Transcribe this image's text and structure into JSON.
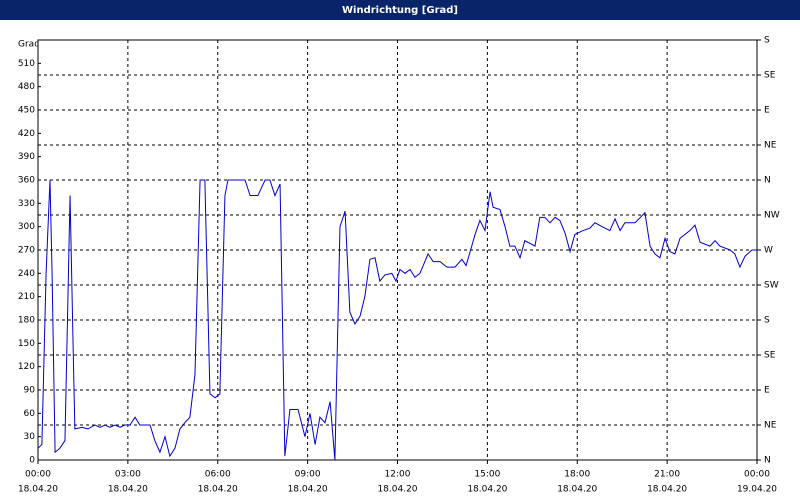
{
  "chart_data": {
    "type": "line",
    "title": "Windrichtung [Grad]",
    "y_label": "Grad",
    "color": "#0000cc",
    "grid": true,
    "xlim": [
      0,
      24
    ],
    "xticks": [
      {
        "value": 0,
        "label": "00:00"
      },
      {
        "value": 3,
        "label": "03:00"
      },
      {
        "value": 6,
        "label": "06:00"
      },
      {
        "value": 9,
        "label": "09:00"
      },
      {
        "value": 12,
        "label": "12:00"
      },
      {
        "value": 15,
        "label": "15:00"
      },
      {
        "value": 18,
        "label": "18:00"
      },
      {
        "value": 21,
        "label": "21:00"
      },
      {
        "value": 24,
        "label": "00:00"
      }
    ],
    "xtick_dates": [
      "18.04.20",
      "18.04.20",
      "18.04.20",
      "18.04.20",
      "18.04.20",
      "18.04.20",
      "18.04.20",
      "18.04.20",
      "19.04.20"
    ],
    "ylim": [
      0,
      540
    ],
    "yticks": [
      0,
      30,
      60,
      90,
      120,
      150,
      180,
      210,
      240,
      270,
      300,
      330,
      360,
      390,
      420,
      450,
      480,
      510
    ],
    "y2lim": [
      0,
      540
    ],
    "y2ticks": [
      {
        "value": 0,
        "label": "N"
      },
      {
        "value": 45,
        "label": "NE"
      },
      {
        "value": 90,
        "label": "E"
      },
      {
        "value": 135,
        "label": "SE"
      },
      {
        "value": 180,
        "label": "S"
      },
      {
        "value": 225,
        "label": "SW"
      },
      {
        "value": 270,
        "label": "W"
      },
      {
        "value": 315,
        "label": "NW"
      },
      {
        "value": 360,
        "label": "N"
      },
      {
        "value": 405,
        "label": "NE"
      },
      {
        "value": 450,
        "label": "E"
      },
      {
        "value": 495,
        "label": "SE"
      },
      {
        "value": 540,
        "label": "S"
      }
    ],
    "x": [
      0,
      0.13,
      0.27,
      0.4,
      0.47,
      0.57,
      0.73,
      0.9,
      1.07,
      1.17,
      1.23,
      1.47,
      1.67,
      1.9,
      2.07,
      2.24,
      2.4,
      2.57,
      2.74,
      2.9,
      3.07,
      3.24,
      3.4,
      3.57,
      3.74,
      3.9,
      4.07,
      4.24,
      4.4,
      4.57,
      4.74,
      4.9,
      5.07,
      5.24,
      5.41,
      5.57,
      5.74,
      5.91,
      6.07,
      6.24,
      6.34,
      6.74,
      6.91,
      7.08,
      7.34,
      7.58,
      7.74,
      7.91,
      8.08,
      8.24,
      8.41,
      8.68,
      8.91,
      9.08,
      9.25,
      9.41,
      9.58,
      9.75,
      9.91,
      10.08,
      10.25,
      10.41,
      10.58,
      10.75,
      10.91,
      11.08,
      11.25,
      11.41,
      11.58,
      11.81,
      11.95,
      12.08,
      12.25,
      12.42,
      12.58,
      12.75,
      13.02,
      13.19,
      13.42,
      13.65,
      13.92,
      14.15,
      14.29,
      14.59,
      14.75,
      14.92,
      15.09,
      15.19,
      15.42,
      15.59,
      15.75,
      15.92,
      16.09,
      16.25,
      16.59,
      16.75,
      16.92,
      17.09,
      17.26,
      17.42,
      17.59,
      17.76,
      17.92,
      18.19,
      18.42,
      18.59,
      18.83,
      19.09,
      19.26,
      19.43,
      19.59,
      19.93,
      20.26,
      20.43,
      20.59,
      20.76,
      20.93,
      21.09,
      21.26,
      21.43,
      21.76,
      21.93,
      22.1,
      22.43,
      22.6,
      22.76,
      23.1,
      23.26,
      23.43,
      23.6,
      23.83,
      24
    ],
    "values": [
      15,
      20,
      240,
      360,
      240,
      10,
      15,
      25,
      340,
      150,
      40,
      42,
      40,
      45,
      42,
      45,
      42,
      45,
      42,
      45,
      45,
      55,
      45,
      45,
      45,
      25,
      10,
      30,
      5,
      15,
      40,
      48,
      55,
      110,
      360,
      360,
      85,
      80,
      85,
      340,
      360,
      360,
      360,
      340,
      340,
      360,
      360,
      340,
      355,
      5,
      65,
      65,
      30,
      60,
      20,
      55,
      48,
      75,
      0,
      300,
      320,
      190,
      175,
      185,
      210,
      258,
      260,
      230,
      238,
      240,
      230,
      245,
      240,
      245,
      235,
      240,
      265,
      255,
      255,
      248,
      248,
      258,
      250,
      290,
      308,
      295,
      345,
      325,
      322,
      300,
      275,
      275,
      260,
      282,
      275,
      312,
      312,
      305,
      312,
      308,
      292,
      268,
      290,
      295,
      298,
      305,
      300,
      295,
      310,
      295,
      305,
      305,
      318,
      275,
      265,
      260,
      285,
      268,
      265,
      285,
      295,
      302,
      280,
      275,
      282,
      275,
      270,
      265,
      248,
      262,
      270,
      270
    ]
  }
}
